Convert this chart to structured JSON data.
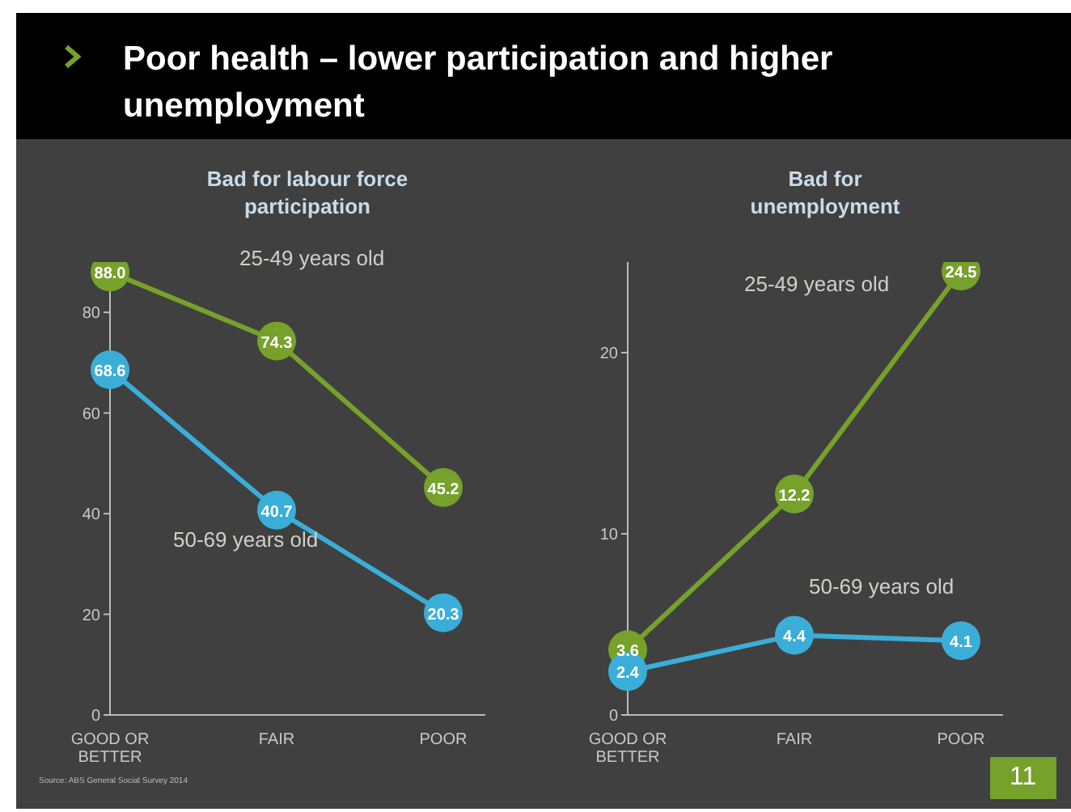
{
  "chart_data": [
    {
      "type": "line",
      "title": "Poor health – lower participation and higher unemployment",
      "subtitle": "Bad for labour force participation",
      "categories": [
        "GOOD OR BETTER",
        "FAIR",
        "POOR"
      ],
      "series": [
        {
          "name": "25-49 years old",
          "color": "#76a12a",
          "values": [
            88.0,
            74.3,
            45.2
          ],
          "value_labels": [
            "88.0",
            "74.3",
            "45.2"
          ]
        },
        {
          "name": "50-69 years old",
          "color": "#3aaed8",
          "values": [
            68.6,
            40.7,
            20.3
          ],
          "value_labels": [
            "68.6",
            "40.7",
            "20.3"
          ]
        }
      ],
      "ylim": [
        0,
        90
      ],
      "yticks": [
        0,
        20,
        40,
        60,
        80
      ],
      "marker": "circle",
      "annotations": [
        "Source: ABS General Social Survey 2014"
      ]
    },
    {
      "type": "line",
      "subtitle": "Bad for unemployment",
      "categories": [
        "GOOD OR BETTER",
        "FAIR",
        "POOR"
      ],
      "series": [
        {
          "name": "25-49 years old",
          "color": "#76a12a",
          "values": [
            3.6,
            12.2,
            24.5
          ]
        },
        {
          "name": "50-69 years old",
          "color": "#3aaed8",
          "values": [
            2.4,
            4.4,
            4.1
          ]
        }
      ],
      "ylim": [
        0,
        25
      ],
      "yticks": [
        0,
        10,
        20
      ],
      "data_labels": true,
      "marker": "circle",
      "annotations": [
        "11"
      ]
    }
  ]
}
